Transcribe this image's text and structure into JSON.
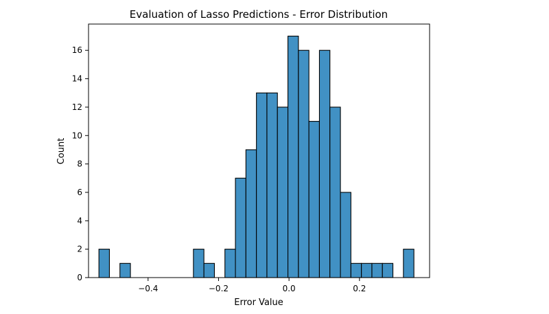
{
  "chart_data": {
    "type": "bar",
    "title": "Evaluation of Lasso Predictions - Error Distribution",
    "xlabel": "Error Value",
    "ylabel": "Count",
    "bin_width": 0.0298,
    "bins": [
      {
        "start": -0.5395,
        "count": 2
      },
      {
        "start": -0.5097,
        "count": 0
      },
      {
        "start": -0.4799,
        "count": 1
      },
      {
        "start": -0.4501,
        "count": 0
      },
      {
        "start": -0.4203,
        "count": 0
      },
      {
        "start": -0.3905,
        "count": 0
      },
      {
        "start": -0.3607,
        "count": 0
      },
      {
        "start": -0.3309,
        "count": 0
      },
      {
        "start": -0.3011,
        "count": 0
      },
      {
        "start": -0.2713,
        "count": 2
      },
      {
        "start": -0.2415,
        "count": 1
      },
      {
        "start": -0.2117,
        "count": 0
      },
      {
        "start": -0.1819,
        "count": 2
      },
      {
        "start": -0.1521,
        "count": 7
      },
      {
        "start": -0.1223,
        "count": 9
      },
      {
        "start": -0.0925,
        "count": 13
      },
      {
        "start": -0.0627,
        "count": 13
      },
      {
        "start": -0.0329,
        "count": 12
      },
      {
        "start": -0.0031,
        "count": 17
      },
      {
        "start": 0.0267,
        "count": 16
      },
      {
        "start": 0.0565,
        "count": 11
      },
      {
        "start": 0.0863,
        "count": 16
      },
      {
        "start": 0.1161,
        "count": 12
      },
      {
        "start": 0.1459,
        "count": 6
      },
      {
        "start": 0.1757,
        "count": 1
      },
      {
        "start": 0.2055,
        "count": 1
      },
      {
        "start": 0.2353,
        "count": 1
      },
      {
        "start": 0.2651,
        "count": 1
      },
      {
        "start": 0.2949,
        "count": 0
      },
      {
        "start": 0.3247,
        "count": 2
      }
    ],
    "x_ticks": [
      {
        "value": -0.4,
        "label": "−0.4"
      },
      {
        "value": -0.2,
        "label": "−0.2"
      },
      {
        "value": 0.0,
        "label": "0.0"
      },
      {
        "value": 0.2,
        "label": "0.2"
      }
    ],
    "y_ticks": [
      {
        "value": 0,
        "label": "0"
      },
      {
        "value": 2,
        "label": "2"
      },
      {
        "value": 4,
        "label": "4"
      },
      {
        "value": 6,
        "label": "6"
      },
      {
        "value": 8,
        "label": "8"
      },
      {
        "value": 10,
        "label": "10"
      },
      {
        "value": 12,
        "label": "12"
      },
      {
        "value": 14,
        "label": "14"
      },
      {
        "value": 16,
        "label": "16"
      }
    ],
    "xlim": [
      -0.569,
      0.399
    ],
    "ylim": [
      0,
      17.85
    ],
    "grid": false,
    "legend": "none",
    "bar_color": "#4191c4",
    "edge_color": "#000000"
  }
}
